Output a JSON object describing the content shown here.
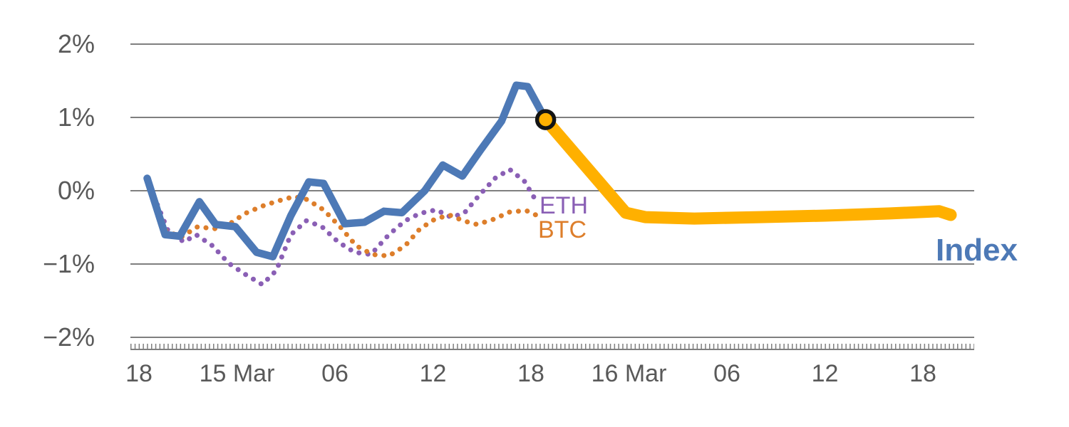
{
  "chart_data": {
    "type": "line",
    "title": "",
    "x_axis": {
      "unit": "hours-from-14-Mar-18:00",
      "range_t": [
        -0.45,
        51.1
      ],
      "ticks": [
        {
          "t": 0,
          "label": "18"
        },
        {
          "t": 6,
          "label": "15 Mar"
        },
        {
          "t": 12,
          "label": "06"
        },
        {
          "t": 18,
          "label": "12"
        },
        {
          "t": 24,
          "label": "18"
        },
        {
          "t": 30,
          "label": "16 Mar"
        },
        {
          "t": 36,
          "label": "06"
        },
        {
          "t": 42,
          "label": "12"
        },
        {
          "t": 48,
          "label": "18"
        }
      ]
    },
    "y_axis": {
      "unit": "percent",
      "range": [
        -2.2,
        2.35
      ],
      "ticks": [
        {
          "v": 2,
          "label": "2%"
        },
        {
          "v": 1,
          "label": "1%"
        },
        {
          "v": 0,
          "label": "0%"
        },
        {
          "v": -1,
          "label": "−1%"
        },
        {
          "v": -2,
          "label": "−2%"
        }
      ]
    },
    "series": [
      {
        "name": "ETH",
        "color": "#8a5fb5",
        "line_style": "dotted",
        "width": 7,
        "points": [
          [
            0.5,
            0.15
          ],
          [
            1.75,
            -0.53
          ],
          [
            2.75,
            -0.7
          ],
          [
            3.5,
            -0.6
          ],
          [
            4.5,
            -0.75
          ],
          [
            5.5,
            -0.99
          ],
          [
            6.5,
            -1.14
          ],
          [
            7.55,
            -1.28
          ],
          [
            8.4,
            -1.09
          ],
          [
            9.3,
            -0.6
          ],
          [
            10.25,
            -0.41
          ],
          [
            11.2,
            -0.49
          ],
          [
            12.2,
            -0.7
          ],
          [
            13.2,
            -0.84
          ],
          [
            14.2,
            -0.87
          ],
          [
            15.3,
            -0.6
          ],
          [
            16.3,
            -0.41
          ],
          [
            17.2,
            -0.31
          ],
          [
            18.2,
            -0.26
          ],
          [
            19.1,
            -0.36
          ],
          [
            19.9,
            -0.31
          ],
          [
            20.8,
            -0.07
          ],
          [
            21.8,
            0.17
          ],
          [
            22.7,
            0.29
          ],
          [
            23.6,
            0.13
          ],
          [
            24.4,
            -0.17
          ]
        ]
      },
      {
        "name": "BTC",
        "color": "#dd7e2b",
        "line_style": "dotted",
        "width": 7,
        "points": [
          [
            0.5,
            0.15
          ],
          [
            1.65,
            -0.55
          ],
          [
            2.6,
            -0.63
          ],
          [
            3.6,
            -0.49
          ],
          [
            4.6,
            -0.52
          ],
          [
            5.5,
            -0.46
          ],
          [
            6.5,
            -0.31
          ],
          [
            7.55,
            -0.21
          ],
          [
            8.5,
            -0.14
          ],
          [
            9.5,
            -0.08
          ],
          [
            10.3,
            -0.12
          ],
          [
            11.3,
            -0.26
          ],
          [
            12.35,
            -0.5
          ],
          [
            13.3,
            -0.75
          ],
          [
            14.3,
            -0.87
          ],
          [
            15.3,
            -0.89
          ],
          [
            16.3,
            -0.75
          ],
          [
            17.2,
            -0.52
          ],
          [
            18.1,
            -0.39
          ],
          [
            19.0,
            -0.33
          ],
          [
            19.85,
            -0.41
          ],
          [
            20.7,
            -0.46
          ],
          [
            21.7,
            -0.39
          ],
          [
            22.7,
            -0.29
          ],
          [
            23.7,
            -0.27
          ],
          [
            24.6,
            -0.36
          ]
        ]
      },
      {
        "name": "Index",
        "color": "#4d79b6",
        "line_style": "solid",
        "width": 10.5,
        "points": [
          [
            0.5,
            0.17
          ],
          [
            1.6,
            -0.6
          ],
          [
            2.5,
            -0.62
          ],
          [
            3.7,
            -0.15
          ],
          [
            4.7,
            -0.46
          ],
          [
            5.9,
            -0.49
          ],
          [
            7.2,
            -0.84
          ],
          [
            8.2,
            -0.9
          ],
          [
            9.3,
            -0.34
          ],
          [
            10.4,
            0.12
          ],
          [
            11.3,
            0.1
          ],
          [
            12.6,
            -0.45
          ],
          [
            13.8,
            -0.43
          ],
          [
            15.0,
            -0.28
          ],
          [
            16.1,
            -0.3
          ],
          [
            17.5,
            0.0
          ],
          [
            18.6,
            0.35
          ],
          [
            19.8,
            0.2
          ],
          [
            20.9,
            0.55
          ],
          [
            22.2,
            0.95
          ],
          [
            23.1,
            1.44
          ],
          [
            23.8,
            1.42
          ],
          [
            24.9,
            0.97
          ]
        ]
      },
      {
        "name": "Index projection",
        "color": "#ffb000",
        "line_style": "solid",
        "width": 17,
        "points": [
          [
            24.9,
            0.97
          ],
          [
            29.8,
            -0.3
          ],
          [
            31.0,
            -0.36
          ],
          [
            34.0,
            -0.38
          ],
          [
            38.0,
            -0.36
          ],
          [
            42.0,
            -0.34
          ],
          [
            46.0,
            -0.31
          ],
          [
            49.0,
            -0.28
          ],
          [
            49.7,
            -0.33
          ]
        ]
      }
    ],
    "marker": {
      "t": 24.9,
      "v": 0.97,
      "fill": "#ffb000",
      "ring": "#141414",
      "radius": 12,
      "ring_width": 5.5
    },
    "labels": {
      "eth": "ETH",
      "btc": "BTC",
      "index": "Index"
    },
    "colors": {
      "grid": "#7f7f7f",
      "axis_line": "#7f7f7f",
      "tick_text": "#595959"
    }
  }
}
